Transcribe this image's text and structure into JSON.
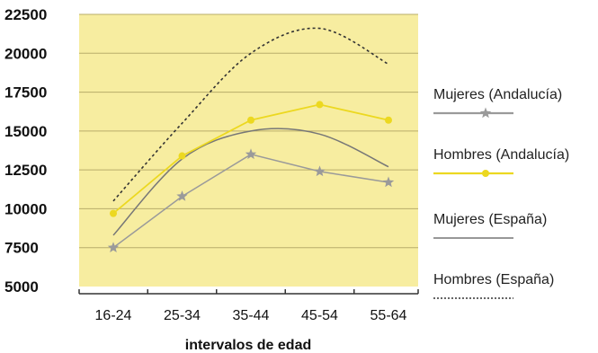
{
  "chart_data": {
    "type": "line",
    "title": "",
    "xlabel": "intervalos de edad",
    "ylabel": "",
    "categories": [
      "16-24",
      "25-34",
      "35-44",
      "45-54",
      "55-64"
    ],
    "ylim": [
      5000,
      22500
    ],
    "yticks": [
      5000,
      7500,
      10000,
      12500,
      15000,
      17500,
      20000,
      22500
    ],
    "ytick_labels": [
      "5000",
      "7500",
      "10000",
      "12500",
      "15000",
      "17500",
      "20000",
      "22500"
    ],
    "grid": "horizontal",
    "legend_position": "right",
    "plot_background": "#f7eda0",
    "series": [
      {
        "name": "Mujeres (Andalucía)",
        "values": [
          7500,
          10800,
          13500,
          12400,
          11700
        ],
        "color": "#9a9a9a",
        "marker": "star",
        "line_style": "solid",
        "smooth": false
      },
      {
        "name": "Hombres (Andalucía)",
        "values": [
          9700,
          13400,
          15700,
          16700,
          15700
        ],
        "color": "#ecd820",
        "marker": "circle",
        "line_style": "solid",
        "smooth": false
      },
      {
        "name": "Mujeres (España)",
        "values": [
          8300,
          13200,
          15000,
          14800,
          12700
        ],
        "color": "#777777",
        "marker": "none",
        "line_style": "solid",
        "smooth": true
      },
      {
        "name": "Hombres (España)",
        "values": [
          10500,
          15500,
          20000,
          21600,
          19300
        ],
        "color": "#333333",
        "marker": "none",
        "line_style": "dotted",
        "smooth": true
      }
    ]
  }
}
